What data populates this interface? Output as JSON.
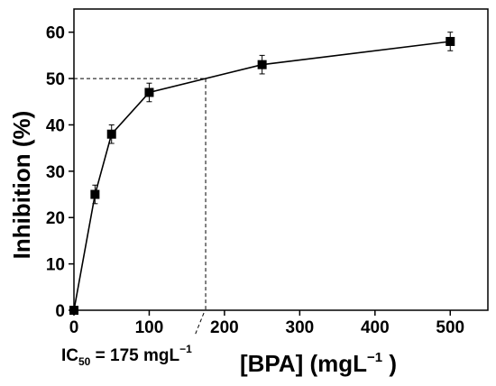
{
  "chart_data": {
    "type": "scatter",
    "xlabel": {
      "text": "[BPA] (mgL",
      "sup": "−1",
      "end": " )"
    },
    "ylabel": "Inhibition (%)",
    "xlim": [
      0,
      550
    ],
    "ylim": [
      0,
      65
    ],
    "xticks": [
      "0",
      "100",
      "200",
      "300",
      "400",
      "500"
    ],
    "yticks": [
      "0",
      "10",
      "20",
      "30",
      "40",
      "50",
      "60"
    ],
    "grid": false,
    "series": [
      {
        "x": [
          0,
          28,
          50,
          100,
          250,
          500
        ],
        "y": [
          0,
          25,
          38,
          47,
          53,
          58
        ],
        "yerr": [
          0,
          2,
          2,
          2,
          2,
          2
        ],
        "connected": true
      }
    ],
    "reference": {
      "x": 175,
      "y": 50
    },
    "annotation": {
      "ic": "IC",
      "sub": "50",
      "rest": " = 175 mgL",
      "sup": "−1"
    }
  }
}
